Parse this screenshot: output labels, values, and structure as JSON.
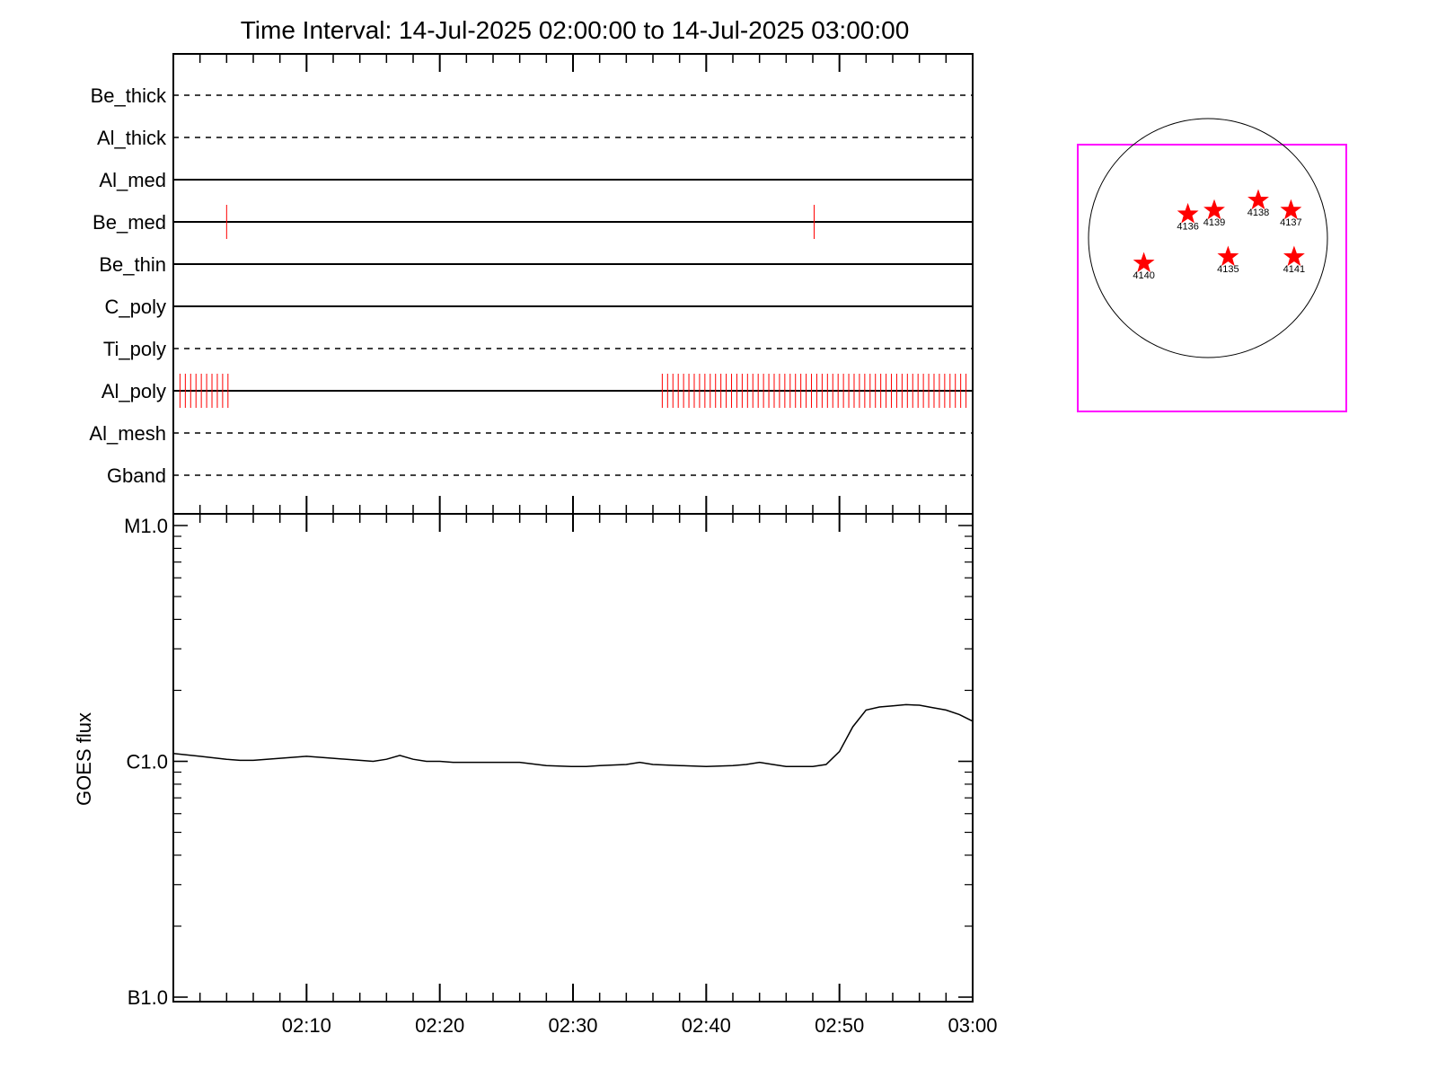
{
  "title": "Time Interval: 14-Jul-2025 02:00:00 to 14-Jul-2025 03:00:00",
  "colors": {
    "axis": "#000000",
    "event_tick": "#ff0000",
    "fov_box": "#ff00ff",
    "star": "#ff0000"
  },
  "filter_panel": {
    "rows": [
      {
        "label": "Be_thick",
        "style": "dashed",
        "events": []
      },
      {
        "label": "Al_thick",
        "style": "dashed",
        "events": []
      },
      {
        "label": "Al_med",
        "style": "solid",
        "events": []
      },
      {
        "label": "Be_med",
        "style": "solid",
        "events": [
          4.0,
          48.1
        ]
      },
      {
        "label": "Be_thin",
        "style": "solid",
        "events": []
      },
      {
        "label": "C_poly",
        "style": "solid",
        "events": []
      },
      {
        "label": "Ti_poly",
        "style": "dashed",
        "events": []
      },
      {
        "label": "Al_poly",
        "style": "solid",
        "event_groups": [
          {
            "start": 0.5,
            "end": 4.3,
            "step": 0.4
          },
          {
            "start": 36.7,
            "end": 59.7,
            "step": 0.4
          }
        ]
      },
      {
        "label": "Al_mesh",
        "style": "dashed",
        "events": []
      },
      {
        "label": "Gband",
        "style": "dashed",
        "events": []
      }
    ]
  },
  "chart_data": {
    "type": "line",
    "xlabel": "",
    "ylabel": "GOES flux",
    "x_unit": "minutes after 02:00",
    "xlim": [
      0,
      60
    ],
    "x_ticks": [
      {
        "value": 10,
        "label": "02:10"
      },
      {
        "value": 20,
        "label": "02:20"
      },
      {
        "value": 30,
        "label": "02:30"
      },
      {
        "value": 40,
        "label": "02:40"
      },
      {
        "value": 50,
        "label": "02:50"
      },
      {
        "value": 60,
        "label": "03:00"
      }
    ],
    "y_scale": "log",
    "ylim": [
      1e-07,
      1e-05
    ],
    "y_ticks": [
      {
        "value": 1e-05,
        "label": "M1.0"
      },
      {
        "value": 1e-06,
        "label": "C1.0"
      },
      {
        "value": 1e-07,
        "label": "B1.0"
      }
    ],
    "series": [
      {
        "x": [
          0,
          2,
          4,
          5,
          6,
          8,
          10,
          12,
          14,
          15,
          16,
          17,
          18,
          19,
          20,
          21,
          22,
          24,
          25,
          26,
          28,
          30,
          31,
          32,
          34,
          35,
          36,
          38,
          40,
          42,
          43,
          44,
          45,
          46,
          47,
          48,
          49,
          50,
          51,
          52,
          53,
          54,
          55,
          56,
          57,
          58,
          59,
          60
        ],
        "y": [
          1.08e-06,
          1.05e-06,
          1.02e-06,
          1.01e-06,
          1.01e-06,
          1.03e-06,
          1.05e-06,
          1.03e-06,
          1.01e-06,
          1e-06,
          1.02e-06,
          1.06e-06,
          1.02e-06,
          1e-06,
          1e-06,
          9.9e-07,
          9.9e-07,
          9.9e-07,
          9.9e-07,
          9.9e-07,
          9.6e-07,
          9.5e-07,
          9.5e-07,
          9.6e-07,
          9.7e-07,
          9.9e-07,
          9.7e-07,
          9.6e-07,
          9.5e-07,
          9.6e-07,
          9.7e-07,
          9.9e-07,
          9.7e-07,
          9.5e-07,
          9.5e-07,
          9.5e-07,
          9.7e-07,
          1.1e-06,
          1.4e-06,
          1.65e-06,
          1.7e-06,
          1.72e-06,
          1.74e-06,
          1.73e-06,
          1.69e-06,
          1.65e-06,
          1.58e-06,
          1.48e-06
        ]
      }
    ]
  },
  "solar_map": {
    "regions": [
      {
        "id": "4136",
        "x": -320,
        "y": 380
      },
      {
        "id": "4139",
        "x": 100,
        "y": 440
      },
      {
        "id": "4138",
        "x": 800,
        "y": 600
      },
      {
        "id": "4137",
        "x": 1320,
        "y": 440
      },
      {
        "id": "4140",
        "x": -1020,
        "y": -400
      },
      {
        "id": "4135",
        "x": 320,
        "y": -300
      },
      {
        "id": "4141",
        "x": 1370,
        "y": -300
      }
    ]
  }
}
